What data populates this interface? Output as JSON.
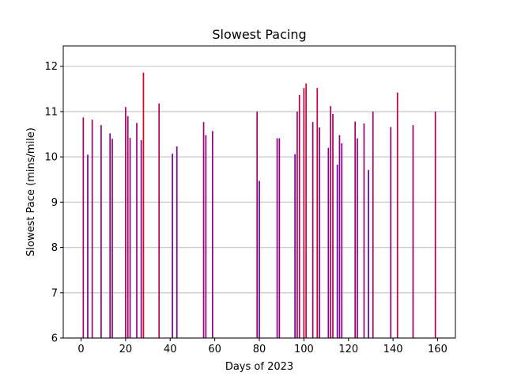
{
  "chart_data": {
    "type": "bar",
    "title": "Slowest Pacing",
    "xlabel": "Days of 2023",
    "ylabel": "Slowest Pace (mins/mile)",
    "xlim": [
      -8,
      168
    ],
    "ylim": [
      6,
      12.45
    ],
    "xticks": [
      0,
      20,
      40,
      60,
      80,
      100,
      120,
      140,
      160
    ],
    "yticks": [
      6,
      7,
      8,
      9,
      10,
      11,
      12
    ],
    "grid": "horizontal",
    "colors": {
      "low": "#5500cc",
      "high": "#dd0022",
      "grid": "#cccccc",
      "axis": "#000000"
    },
    "color_range": [
      9.4,
      11.9
    ],
    "x": [
      1,
      3,
      5,
      9,
      13,
      14,
      20,
      21,
      22,
      25,
      27,
      28,
      35,
      41,
      43,
      55,
      56,
      59,
      79,
      80,
      88,
      89,
      96,
      97,
      98,
      100,
      101,
      104,
      106,
      107,
      111,
      112,
      113,
      115,
      116,
      117,
      123,
      124,
      127,
      129,
      131,
      139,
      142,
      149,
      159
    ],
    "values": [
      10.87,
      10.05,
      10.82,
      10.7,
      10.52,
      10.4,
      11.1,
      10.9,
      10.42,
      10.75,
      10.37,
      11.86,
      11.18,
      10.07,
      10.23,
      10.77,
      10.48,
      10.57,
      11.0,
      9.47,
      10.41,
      10.41,
      10.06,
      11.0,
      11.37,
      11.52,
      11.62,
      10.77,
      11.52,
      10.65,
      10.2,
      11.12,
      10.95,
      9.83,
      10.48,
      10.3,
      10.78,
      10.41,
      10.74,
      9.71,
      11.0,
      10.66,
      11.42,
      10.7,
      11.0
    ]
  }
}
